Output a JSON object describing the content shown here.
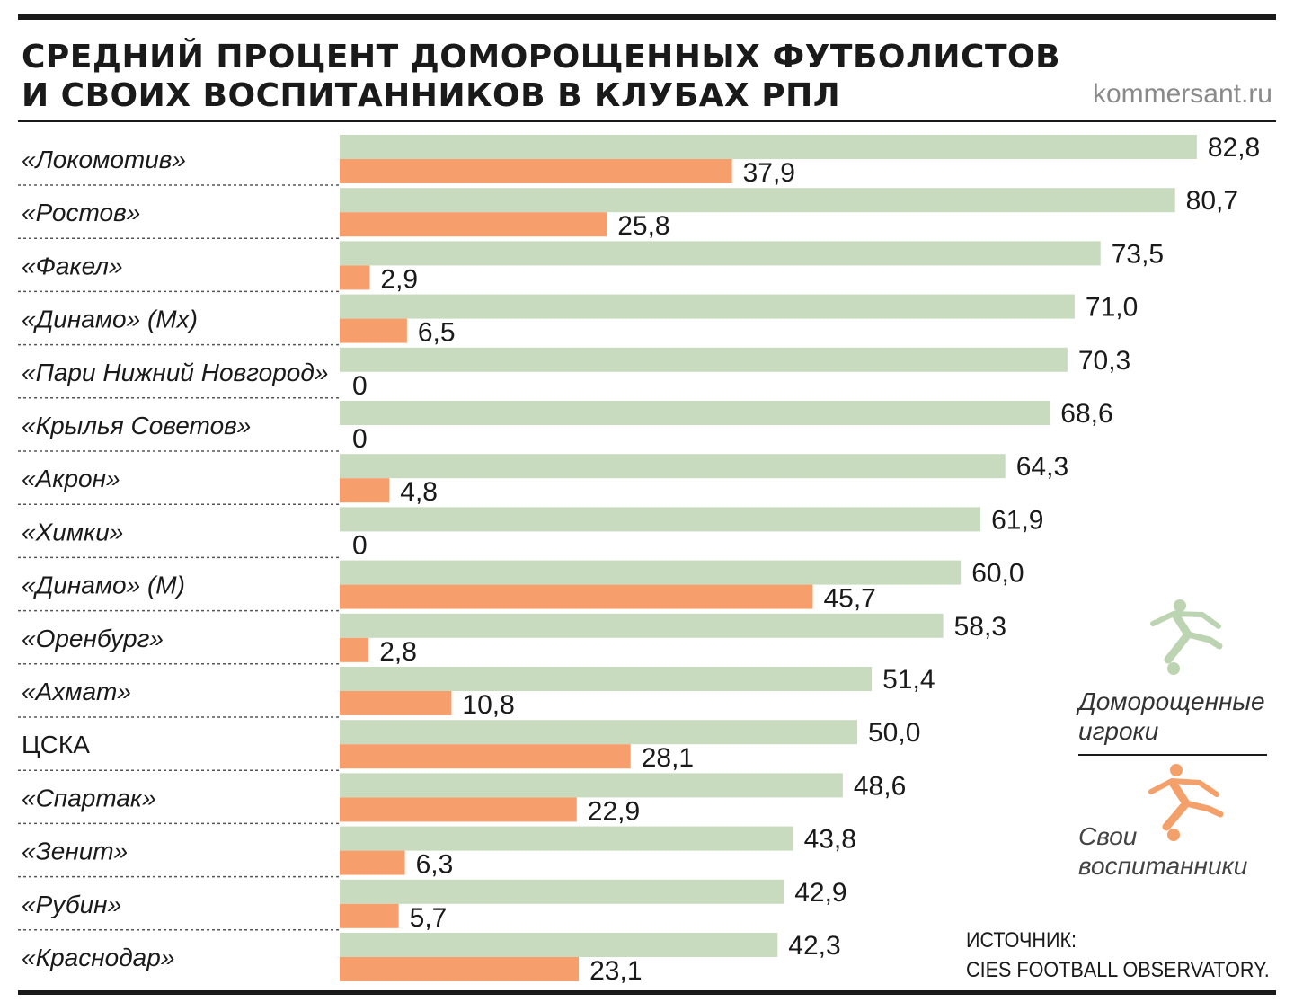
{
  "title_line1": "СРЕДНИЙ ПРОЦЕНТ ДОМОРОЩЕННЫХ ФУТБОЛИСТОВ",
  "title_line2": "И СВОИХ ВОСПИТАННИКОВ В КЛУБАХ РПЛ",
  "site": "kommersant.ru",
  "source_line1": "ИСТОЧНИК:",
  "source_line2": "CIES FOOTBALL OBSERVATORY.",
  "legend": {
    "homegrown": [
      "Доморощенные",
      "игроки"
    ],
    "own": [
      "Свои",
      "воспитанники"
    ]
  },
  "colors": {
    "homegrown": "#c8dbbf",
    "own": "#f79f6c",
    "homegrown_icon": "#bcd4b2",
    "own_icon": "#f4a06a",
    "text": "#1a1a1a"
  },
  "chart_data": {
    "type": "bar",
    "orientation": "horizontal",
    "categories": [
      "«Локомотив»",
      "«Ростов»",
      "«Факел»",
      "«Динамо» (Мх)",
      "«Пари Нижний Новгород»",
      "«Крылья Советов»",
      "«Акрон»",
      "«Химки»",
      "«Динамо» (М)",
      "«Оренбург»",
      "«Ахмат»",
      "ЦСКА",
      "«Спартак»",
      "«Зенит»",
      "«Рубин»",
      "«Краснодар»"
    ],
    "series": [
      {
        "name": "Доморощенные игроки",
        "values": [
          82.8,
          80.7,
          73.5,
          71.0,
          70.3,
          68.6,
          64.3,
          61.9,
          60.0,
          58.3,
          51.4,
          50.0,
          48.6,
          43.8,
          42.9,
          42.3
        ],
        "labels": [
          "82,8",
          "80,7",
          "73,5",
          "71,0",
          "70,3",
          "68,6",
          "64,3",
          "61,9",
          "60,0",
          "58,3",
          "51,4",
          "50,0",
          "48,6",
          "43,8",
          "42,9",
          "42,3"
        ]
      },
      {
        "name": "Свои воспитанники",
        "values": [
          37.9,
          25.8,
          2.9,
          6.5,
          0,
          0,
          4.8,
          0,
          45.7,
          2.8,
          10.8,
          28.1,
          22.9,
          6.3,
          5.7,
          23.1
        ],
        "labels": [
          "37,9",
          "25,8",
          "2,9",
          "6,5",
          "0",
          "0",
          "4,8",
          "0",
          "45,7",
          "2,8",
          "10,8",
          "28,1",
          "22,9",
          "6,3",
          "5,7",
          "23,1"
        ]
      }
    ],
    "xlim": [
      0,
      100
    ],
    "legend_position": "right"
  }
}
